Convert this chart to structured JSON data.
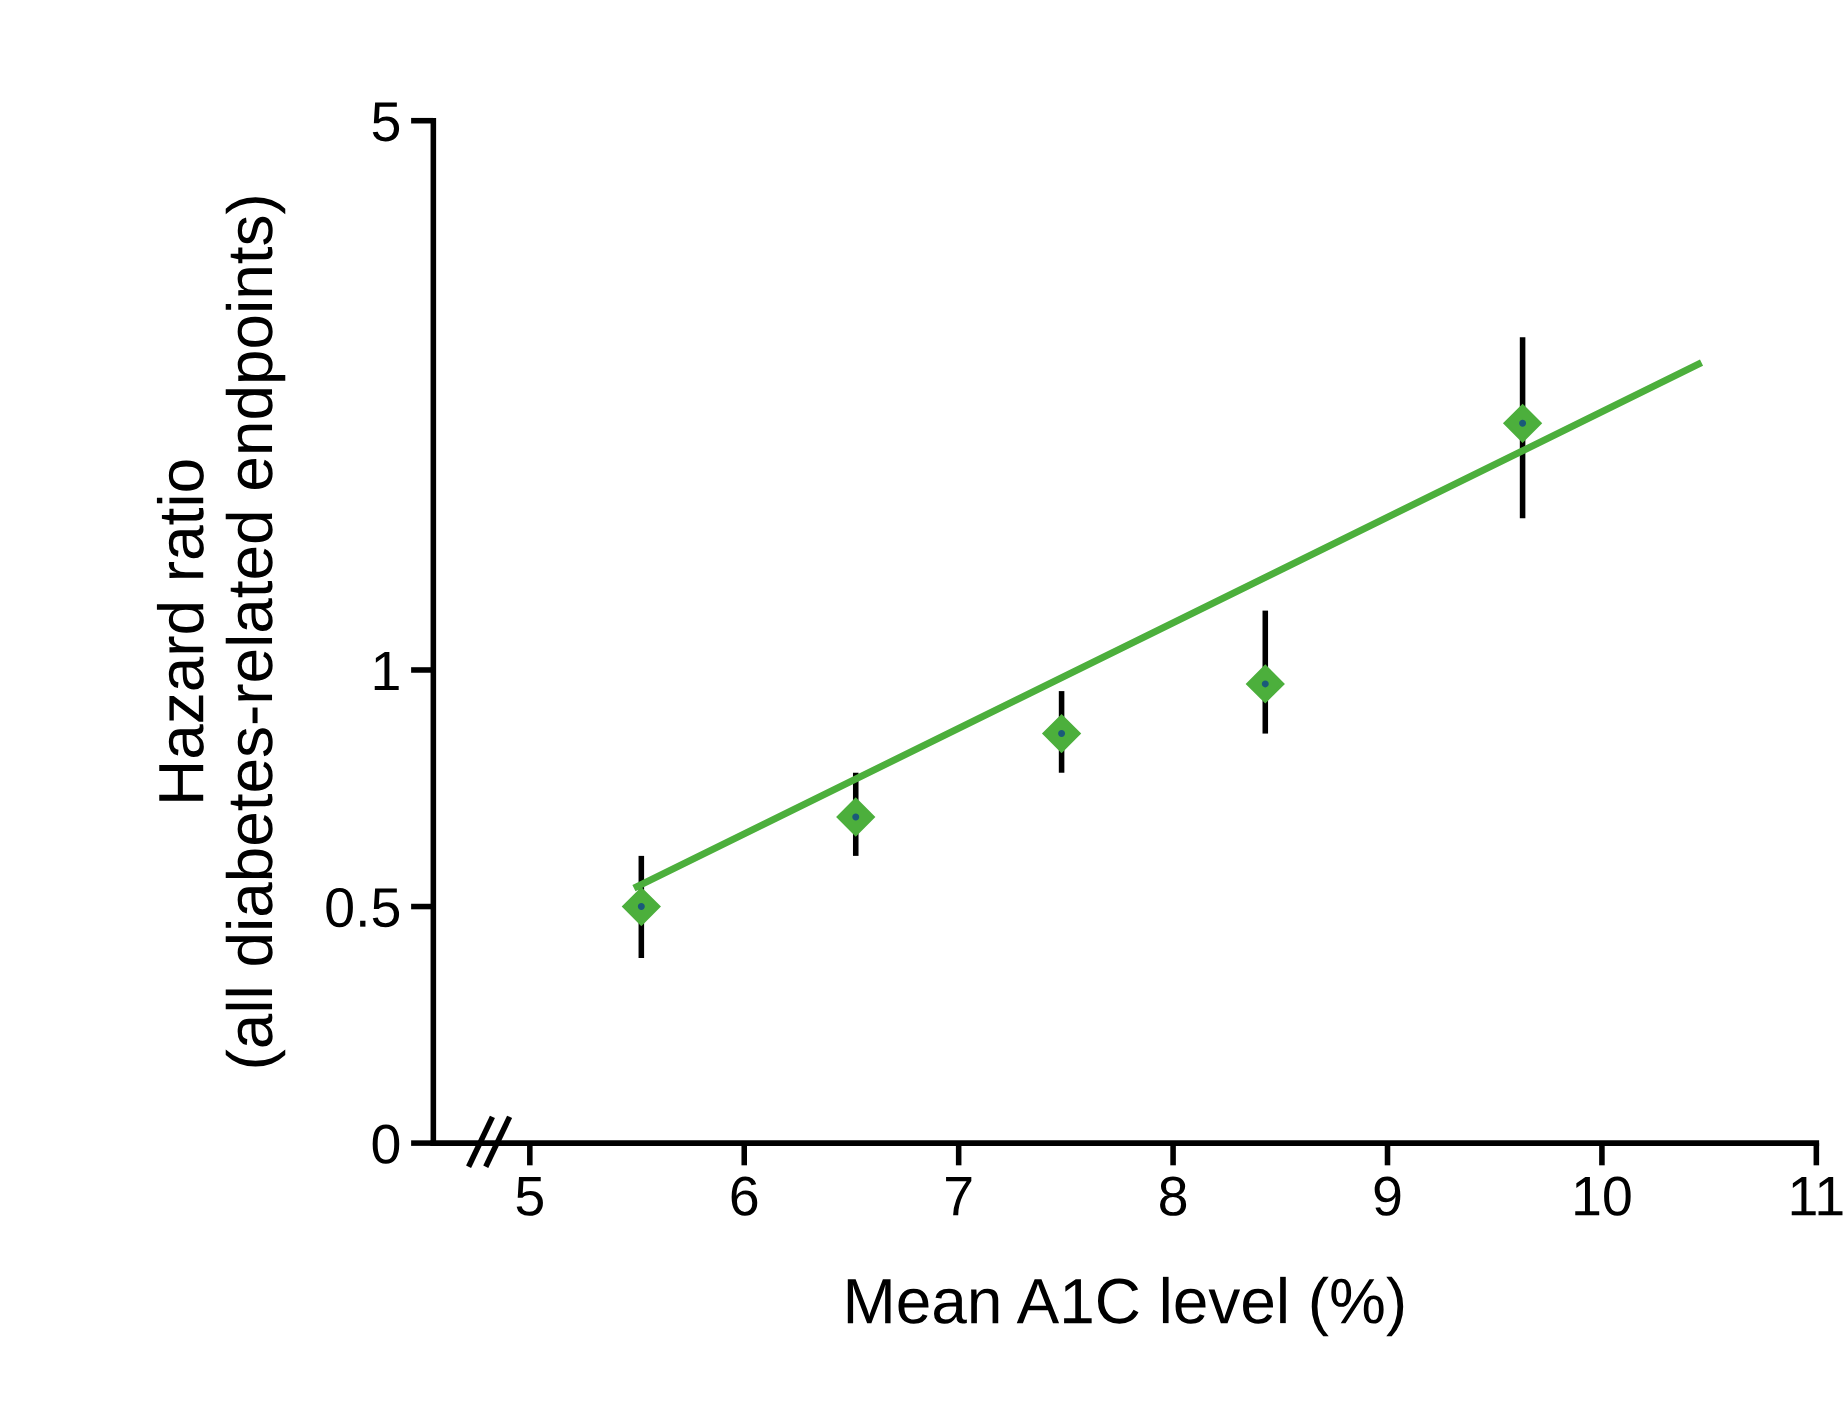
{
  "chart_data": {
    "type": "scatter",
    "xlabel": "Mean A1C level (%)",
    "ylabel": "Hazard ratio\n(all diabetes-related endpoints)",
    "log": "y",
    "xlim": [
      4.55,
      11
    ],
    "xticks": [
      5,
      6,
      7,
      8,
      9,
      10,
      11
    ],
    "ylim": [
      0.25,
      5
    ],
    "yticks": [
      {
        "value": 0.25,
        "label": "0"
      },
      0.5,
      1,
      5
    ],
    "grid": false,
    "series": [
      {
        "marker": "diamond",
        "color": "#4caf3c",
        "x": [
          5.52,
          6.52,
          7.48,
          8.43,
          9.63
        ],
        "values": [
          0.5,
          0.65,
          0.83,
          0.96,
          2.06
        ],
        "errors": [
          [
            0.43,
            0.58
          ],
          [
            0.58,
            0.74
          ],
          [
            0.74,
            0.94
          ],
          [
            0.83,
            1.19
          ],
          [
            1.56,
            2.65
          ]
        ]
      },
      {
        "type": "line",
        "color": "#4caf3c",
        "x": [
          5.5,
          10.45
        ],
        "values": [
          0.53,
          2.45
        ]
      }
    ]
  }
}
